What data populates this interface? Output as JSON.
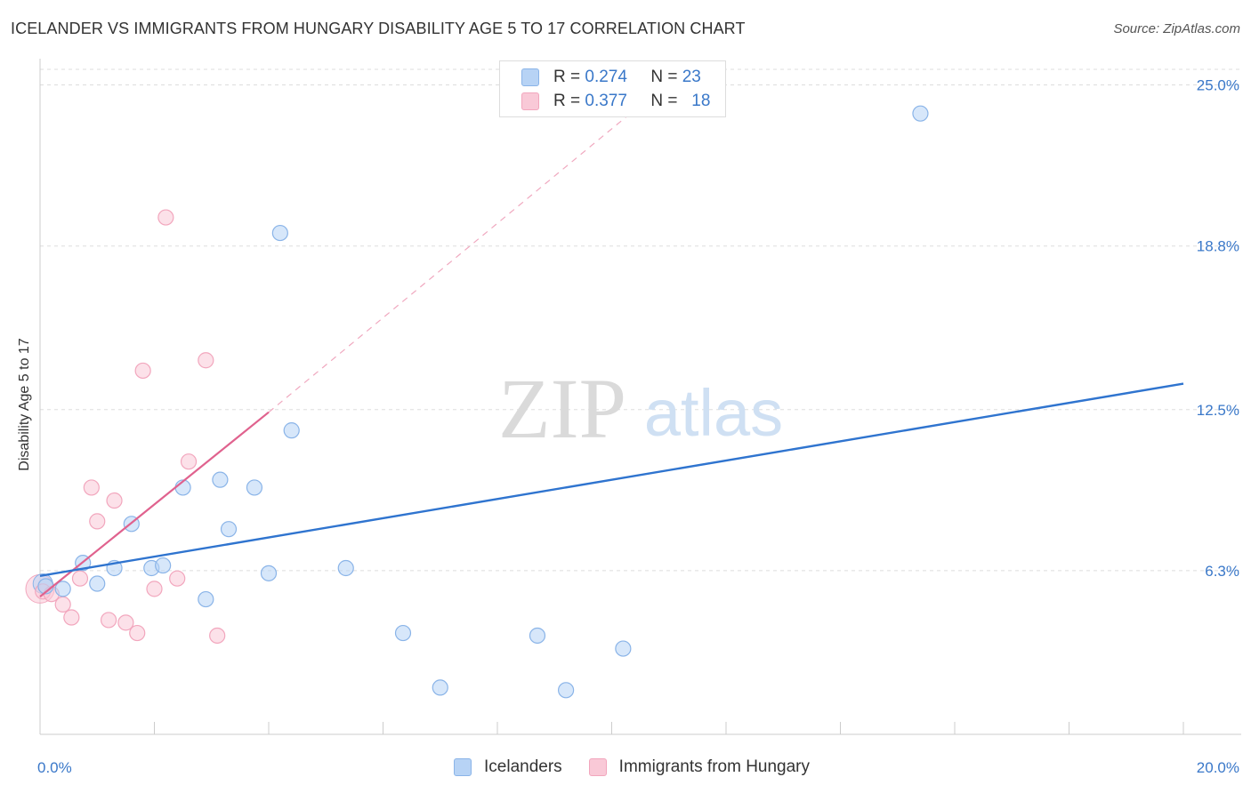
{
  "title": "ICELANDER VS IMMIGRANTS FROM HUNGARY DISABILITY AGE 5 TO 17 CORRELATION CHART",
  "source": "Source: ZipAtlas.com",
  "watermark": {
    "zip": "ZIP",
    "atlas": "atlas"
  },
  "colors": {
    "blue_fill": "#b7d3f5",
    "blue_stroke": "#8ab4e8",
    "blue_line": "#2f74cf",
    "pink_fill": "#f9c9d7",
    "pink_stroke": "#f2a6bd",
    "pink_line": "#e0628e",
    "axis_label": "#3a78c9"
  },
  "legend_top": {
    "rows": [
      {
        "r_label": "R = ",
        "r_value": "0.274",
        "n_label": "N = ",
        "n_value": "23"
      },
      {
        "r_label": "R = ",
        "r_value": "0.377",
        "n_label": "N = ",
        "n_value": "18"
      }
    ]
  },
  "legend_bottom": [
    "Icelanders",
    "Immigrants from Hungary"
  ],
  "chart_data": {
    "type": "scatter",
    "title": "ICELANDER VS IMMIGRANTS FROM HUNGARY DISABILITY AGE 5 TO 17 CORRELATION CHART",
    "xlabel": "",
    "ylabel": "Disability Age 5 to 17",
    "xlim": [
      0,
      20
    ],
    "ylim": [
      0,
      25.6
    ],
    "x_tick_labels": [
      "0.0%",
      "20.0%"
    ],
    "y_ticks": [
      6.3,
      12.5,
      18.8,
      25.0
    ],
    "y_tick_labels": [
      "6.3%",
      "12.5%",
      "18.8%",
      "25.0%"
    ],
    "grid": true,
    "legend_position": "top-center",
    "series": [
      {
        "name": "Icelanders",
        "points": [
          [
            0.1,
            5.7
          ],
          [
            0.4,
            5.6
          ],
          [
            0.75,
            6.6
          ],
          [
            1.0,
            5.8
          ],
          [
            1.3,
            6.4
          ],
          [
            1.6,
            8.1
          ],
          [
            1.95,
            6.4
          ],
          [
            2.15,
            6.5
          ],
          [
            2.5,
            9.5
          ],
          [
            2.9,
            5.2
          ],
          [
            3.15,
            9.8
          ],
          [
            3.3,
            7.9
          ],
          [
            3.75,
            9.5
          ],
          [
            4.0,
            6.2
          ],
          [
            4.2,
            19.3
          ],
          [
            4.4,
            11.7
          ],
          [
            5.35,
            6.4
          ],
          [
            6.35,
            3.9
          ],
          [
            7.0,
            1.8
          ],
          [
            8.7,
            3.8
          ],
          [
            9.2,
            1.7
          ],
          [
            10.2,
            3.3
          ],
          [
            15.4,
            23.9
          ]
        ],
        "trend": {
          "x": [
            0,
            20
          ],
          "y": [
            6.1,
            13.5
          ]
        }
      },
      {
        "name": "Immigrants from Hungary",
        "points": [
          [
            0.05,
            5.5
          ],
          [
            0.2,
            5.4
          ],
          [
            0.4,
            5.0
          ],
          [
            0.55,
            4.5
          ],
          [
            0.7,
            6.0
          ],
          [
            0.9,
            9.5
          ],
          [
            1.0,
            8.2
          ],
          [
            1.2,
            4.4
          ],
          [
            1.3,
            9.0
          ],
          [
            1.5,
            4.3
          ],
          [
            1.7,
            3.9
          ],
          [
            1.8,
            14.0
          ],
          [
            2.0,
            5.6
          ],
          [
            2.2,
            19.9
          ],
          [
            2.4,
            6.0
          ],
          [
            2.6,
            10.5
          ],
          [
            2.9,
            14.4
          ],
          [
            3.1,
            3.8
          ]
        ],
        "trend_solid": {
          "x": [
            0,
            4.0
          ],
          "y": [
            5.3,
            12.4
          ]
        },
        "trend_dashed": {
          "x": [
            4.0,
            10.6
          ],
          "y": [
            12.4,
            24.4
          ]
        }
      }
    ]
  }
}
